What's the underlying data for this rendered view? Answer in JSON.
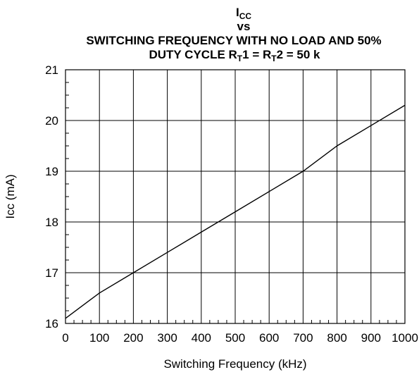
{
  "chart_data": {
    "type": "line",
    "title": {
      "line1_main": "I",
      "line1_sub": "CC",
      "line2": "vs",
      "line3": "SWITCHING FREQUENCY WITH NO LOAD AND 50%",
      "line4_a": "DUTY CYCLE R",
      "line4_sub1": "T",
      "line4_b": "1 = R",
      "line4_sub2": "T",
      "line4_c": "2 = 50 k"
    },
    "xlabel": "Switching Frequency  (kHz)",
    "ylabel": "Icc  (mA)",
    "xlim": [
      0,
      1000
    ],
    "ylim": [
      16,
      21
    ],
    "xticks": [
      "0",
      "100",
      "200",
      "300",
      "400",
      "500",
      "600",
      "700",
      "800",
      "900",
      "1000"
    ],
    "yticks": [
      "16",
      "17",
      "18",
      "19",
      "20",
      "21"
    ],
    "grid": true,
    "series": [
      {
        "x": [
          0,
          100,
          200,
          300,
          400,
          500,
          600,
          700,
          800,
          900,
          1000
        ],
        "y": [
          16.1,
          16.6,
          17.0,
          17.4,
          17.8,
          18.2,
          18.6,
          19.0,
          19.5,
          19.9,
          20.3
        ]
      }
    ]
  }
}
